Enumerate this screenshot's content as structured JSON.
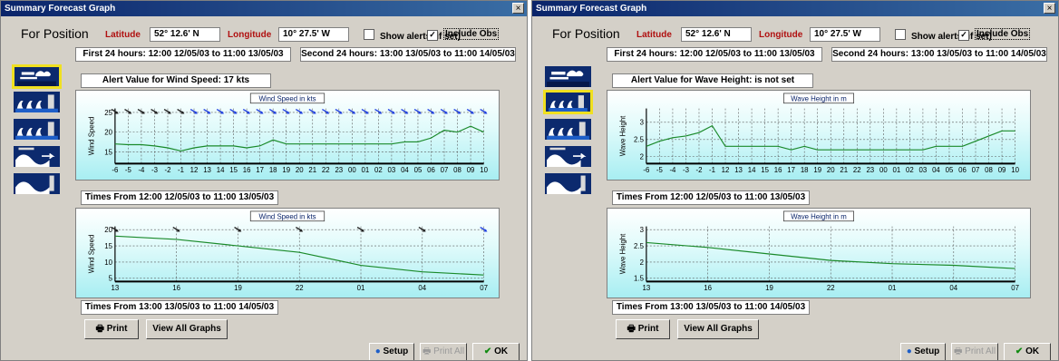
{
  "windows": [
    {
      "title": "Summary Forecast Graph",
      "close_glyph": "×",
      "for_position": "For Position",
      "latitude_label": "Latitude",
      "latitude_value": "52° 12.6' N",
      "longitude_label": "Longitude",
      "longitude_value": "10° 27.5' W",
      "show_alerts_label": "Show alerts (if set)",
      "show_alerts_checked": false,
      "include_obs_label": "Include Obs",
      "include_obs_checked": true,
      "first_24": "First 24 hours: 12:00 12/05/03 to 11:00 13/05/03",
      "second_24": "Second 24 hours: 13:00 13/05/03 to 11:00 14/05/03",
      "alert_text": "Alert Value for Wind Speed: 17 kts",
      "times_from_1": "Times From 12:00 12/05/03 to 11:00 13/05/03",
      "times_from_2": "Times From 13:00 13/05/03 to 11:00 14/05/03",
      "selected_icon": 0,
      "icons": [
        "wind-icon",
        "wave-icon",
        "swell-icon",
        "swell-direction-icon",
        "sea-height-icon"
      ],
      "buttons": {
        "print": "Print",
        "view_all": "View All Graphs",
        "setup": "Setup",
        "print_all": "Print All",
        "ok": "OK"
      },
      "chart_data": [
        {
          "type": "line",
          "title": "Wind Speed in kts",
          "ylabel": "Wind Speed",
          "ylim": [
            12,
            26
          ],
          "yticks": [
            15,
            20,
            25
          ],
          "categories": [
            "-6",
            "-5",
            "-4",
            "-3",
            "-2",
            "-1",
            "12",
            "13",
            "14",
            "15",
            "16",
            "17",
            "18",
            "19",
            "20",
            "21",
            "22",
            "23",
            "00",
            "01",
            "02",
            "03",
            "04",
            "05",
            "06",
            "07",
            "08",
            "09",
            "10"
          ],
          "values": [
            17,
            16.8,
            16.8,
            16.5,
            16,
            15.2,
            16,
            16.5,
            16.5,
            16.5,
            16,
            16.5,
            18,
            17,
            17,
            17,
            17,
            17,
            17,
            17,
            17,
            17,
            17.5,
            17.5,
            18.5,
            20.5,
            20,
            21.5,
            20
          ],
          "wind_arrows": true
        },
        {
          "type": "line",
          "title": "Wind Speed in kts",
          "ylabel": "Wind Speed",
          "ylim": [
            4,
            21
          ],
          "yticks": [
            5,
            10,
            15,
            20
          ],
          "categories": [
            "13",
            "16",
            "19",
            "22",
            "01",
            "04",
            "07"
          ],
          "values": [
            18,
            17,
            15,
            13,
            9,
            7,
            6
          ],
          "wind_arrows": true
        }
      ]
    },
    {
      "title": "Summary Forecast Graph",
      "close_glyph": "×",
      "for_position": "For Position",
      "latitude_label": "Latitude",
      "latitude_value": "52° 12.6' N",
      "longitude_label": "Longitude",
      "longitude_value": "10° 27.5' W",
      "show_alerts_label": "Show alerts (if set)",
      "show_alerts_checked": false,
      "include_obs_label": "Include Obs",
      "include_obs_checked": true,
      "first_24": "First 24 hours: 12:00 12/05/03 to 11:00 13/05/03",
      "second_24": "Second 24 hours: 13:00 13/05/03 to 11:00 14/05/03",
      "alert_text": "Alert Value for Wave Height: is not set",
      "times_from_1": "Times From 12:00 12/05/03 to 11:00 13/05/03",
      "times_from_2": "Times From 13:00 13/05/03 to 11:00 14/05/03",
      "selected_icon": 1,
      "icons": [
        "wind-icon",
        "wave-icon",
        "swell-icon",
        "swell-direction-icon",
        "sea-height-icon"
      ],
      "buttons": {
        "print": "Print",
        "view_all": "View All Graphs",
        "setup": "Setup",
        "print_all": "Print All",
        "ok": "OK"
      },
      "chart_data": [
        {
          "type": "line",
          "title": "Wave Height in m",
          "ylabel": "Wave Height",
          "ylim": [
            1.8,
            3.4
          ],
          "yticks": [
            2,
            2.5,
            3
          ],
          "categories": [
            "-6",
            "-5",
            "-4",
            "-3",
            "-2",
            "-1",
            "12",
            "13",
            "14",
            "15",
            "16",
            "17",
            "18",
            "19",
            "20",
            "21",
            "22",
            "23",
            "00",
            "01",
            "02",
            "03",
            "04",
            "05",
            "06",
            "07",
            "08",
            "09",
            "10"
          ],
          "values": [
            2.3,
            2.45,
            2.55,
            2.6,
            2.7,
            2.9,
            2.3,
            2.3,
            2.3,
            2.3,
            2.3,
            2.2,
            2.3,
            2.2,
            2.2,
            2.2,
            2.2,
            2.2,
            2.2,
            2.2,
            2.2,
            2.2,
            2.3,
            2.3,
            2.3,
            2.45,
            2.6,
            2.75,
            2.75
          ],
          "wind_arrows": false
        },
        {
          "type": "line",
          "title": "Wave Height in m",
          "ylabel": "Wave Height",
          "ylim": [
            1.4,
            3.1
          ],
          "yticks": [
            1.5,
            2,
            2.5,
            3
          ],
          "categories": [
            "13",
            "16",
            "19",
            "22",
            "01",
            "04",
            "07"
          ],
          "values": [
            2.6,
            2.45,
            2.25,
            2.05,
            1.95,
            1.9,
            1.8
          ],
          "wind_arrows": false
        }
      ]
    }
  ]
}
